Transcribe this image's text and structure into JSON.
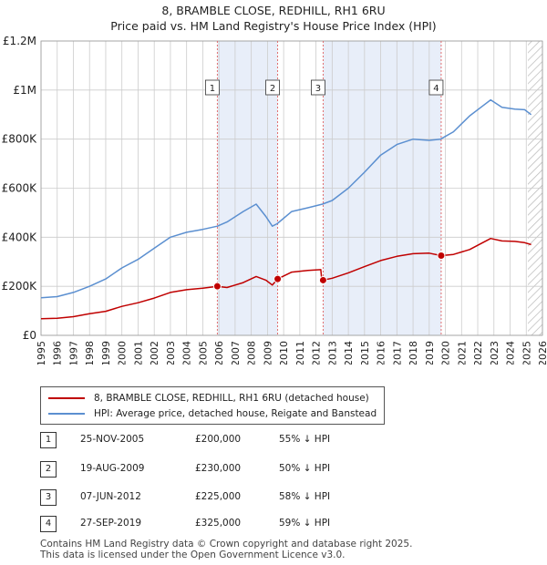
{
  "header": {
    "title": "8, BRAMBLE CLOSE, REDHILL, RH1 6RU",
    "subtitle": "Price paid vs. HM Land Registry's House Price Index (HPI)"
  },
  "colors": {
    "property": "#c00000",
    "hpi": "#5b8fd0",
    "shade": "#e8eef9",
    "grid": "#cccccc",
    "marker": "#c00000",
    "vline": "#e06060"
  },
  "chart_data": {
    "type": "line",
    "title": "8, BRAMBLE CLOSE, REDHILL, RH1 6RU",
    "xlabel": "",
    "ylabel": "",
    "xlim": [
      1995,
      2026
    ],
    "ylim": [
      0,
      1200000
    ],
    "x_ticks": [
      "1995",
      "1996",
      "1997",
      "1998",
      "1999",
      "2000",
      "2001",
      "2002",
      "2003",
      "2004",
      "2005",
      "2006",
      "2007",
      "2008",
      "2009",
      "2010",
      "2011",
      "2012",
      "2013",
      "2014",
      "2015",
      "2016",
      "2017",
      "2018",
      "2019",
      "2020",
      "2021",
      "2022",
      "2023",
      "2024",
      "2025",
      "2026"
    ],
    "y_ticks": [
      {
        "value": 0,
        "label": "£0"
      },
      {
        "value": 200000,
        "label": "£200K"
      },
      {
        "value": 400000,
        "label": "£400K"
      },
      {
        "value": 600000,
        "label": "£600K"
      },
      {
        "value": 800000,
        "label": "£800K"
      },
      {
        "value": 1000000,
        "label": "£1M"
      },
      {
        "value": 1200000,
        "label": "£1.2M"
      }
    ],
    "grid": true,
    "series": [
      {
        "name": "8, BRAMBLE CLOSE, REDHILL, RH1 6RU (detached house)",
        "color": "#c00000",
        "points": [
          [
            1995.0,
            68000
          ],
          [
            1996.0,
            70000
          ],
          [
            1997.0,
            76000
          ],
          [
            1998.0,
            88000
          ],
          [
            1999.0,
            98000
          ],
          [
            2000.0,
            118000
          ],
          [
            2001.0,
            133000
          ],
          [
            2002.0,
            152000
          ],
          [
            2003.0,
            175000
          ],
          [
            2004.0,
            186000
          ],
          [
            2005.0,
            192000
          ],
          [
            2005.9,
            200000
          ],
          [
            2006.5,
            195000
          ],
          [
            2007.5,
            215000
          ],
          [
            2008.3,
            240000
          ],
          [
            2008.9,
            225000
          ],
          [
            2009.3,
            205000
          ],
          [
            2009.63,
            230000
          ],
          [
            2010.5,
            258000
          ],
          [
            2011.5,
            265000
          ],
          [
            2012.3,
            268000
          ],
          [
            2012.35,
            232000
          ],
          [
            2012.44,
            225000
          ],
          [
            2013.0,
            233000
          ],
          [
            2014.0,
            255000
          ],
          [
            2015.0,
            280000
          ],
          [
            2016.0,
            305000
          ],
          [
            2017.0,
            322000
          ],
          [
            2018.0,
            333000
          ],
          [
            2019.0,
            335000
          ],
          [
            2019.74,
            325000
          ],
          [
            2020.5,
            330000
          ],
          [
            2021.5,
            350000
          ],
          [
            2022.3,
            378000
          ],
          [
            2022.8,
            395000
          ],
          [
            2023.5,
            385000
          ],
          [
            2024.3,
            383000
          ],
          [
            2024.9,
            378000
          ],
          [
            2025.3,
            370000
          ]
        ]
      },
      {
        "name": "HPI: Average price, detached house, Reigate and Banstead",
        "color": "#5b8fd0",
        "points": [
          [
            1995.0,
            153000
          ],
          [
            1996.0,
            158000
          ],
          [
            1997.0,
            175000
          ],
          [
            1998.0,
            200000
          ],
          [
            1999.0,
            230000
          ],
          [
            2000.0,
            275000
          ],
          [
            2001.0,
            310000
          ],
          [
            2002.0,
            355000
          ],
          [
            2003.0,
            400000
          ],
          [
            2004.0,
            420000
          ],
          [
            2005.0,
            432000
          ],
          [
            2005.9,
            445000
          ],
          [
            2006.5,
            462000
          ],
          [
            2007.5,
            505000
          ],
          [
            2008.3,
            535000
          ],
          [
            2008.9,
            485000
          ],
          [
            2009.3,
            445000
          ],
          [
            2009.6,
            455000
          ],
          [
            2010.5,
            505000
          ],
          [
            2011.5,
            520000
          ],
          [
            2012.4,
            535000
          ],
          [
            2013.0,
            550000
          ],
          [
            2014.0,
            600000
          ],
          [
            2015.0,
            665000
          ],
          [
            2016.0,
            735000
          ],
          [
            2017.0,
            778000
          ],
          [
            2018.0,
            800000
          ],
          [
            2019.0,
            795000
          ],
          [
            2019.7,
            800000
          ],
          [
            2020.5,
            830000
          ],
          [
            2021.5,
            895000
          ],
          [
            2022.3,
            935000
          ],
          [
            2022.8,
            960000
          ],
          [
            2023.5,
            930000
          ],
          [
            2024.3,
            922000
          ],
          [
            2024.9,
            920000
          ],
          [
            2025.3,
            900000
          ]
        ]
      }
    ],
    "transactions": [
      {
        "num": "1",
        "year": 2005.9,
        "price": 200000
      },
      {
        "num": "2",
        "year": 2009.63,
        "price": 230000
      },
      {
        "num": "3",
        "year": 2012.44,
        "price": 225000
      },
      {
        "num": "4",
        "year": 2019.74,
        "price": 325000
      }
    ],
    "shaded_ranges": [
      [
        2005.9,
        2009.63
      ],
      [
        2012.44,
        2019.74
      ]
    ],
    "forecast_from": 2025.1
  },
  "legend": {
    "property_label": "8, BRAMBLE CLOSE, REDHILL, RH1 6RU (detached house)",
    "hpi_label": "HPI: Average price, detached house, Reigate and Banstead"
  },
  "transactions": [
    {
      "num": "1",
      "date": "25-NOV-2005",
      "price": "£200,000",
      "hpi": "55% ↓ HPI"
    },
    {
      "num": "2",
      "date": "19-AUG-2009",
      "price": "£230,000",
      "hpi": "50% ↓ HPI"
    },
    {
      "num": "3",
      "date": "07-JUN-2012",
      "price": "£225,000",
      "hpi": "58% ↓ HPI"
    },
    {
      "num": "4",
      "date": "27-SEP-2019",
      "price": "£325,000",
      "hpi": "59% ↓ HPI"
    }
  ],
  "footer": {
    "line1": "Contains HM Land Registry data © Crown copyright and database right 2025.",
    "line2": "This data is licensed under the Open Government Licence v3.0."
  }
}
